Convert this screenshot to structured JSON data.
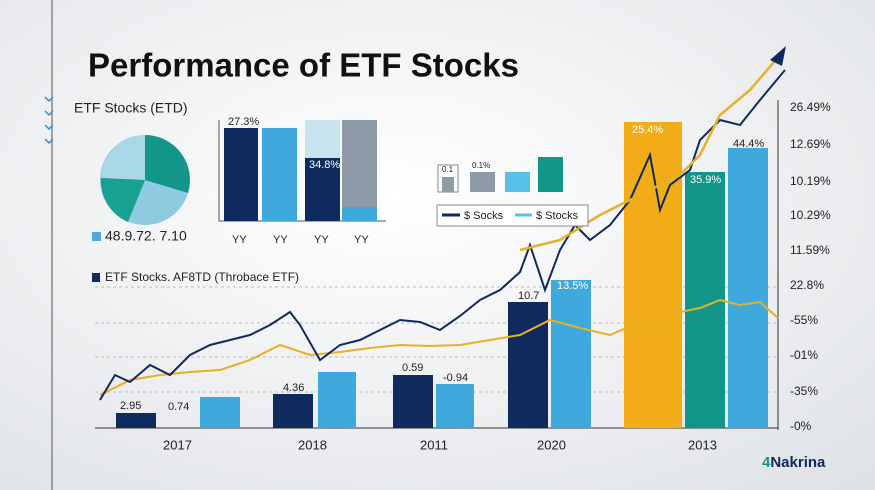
{
  "header": {
    "title": "Performance of ETF Stocks",
    "subtitle": "ETF Stocks (ETD)"
  },
  "pie": {
    "legend": "48.9.72. 7.10"
  },
  "small_bars": {
    "labels": [
      "27.3%",
      "34.8%"
    ],
    "categories": [
      "YY",
      "YY",
      "YY",
      "YY"
    ]
  },
  "mini_bars": {
    "labels": [
      "0.1",
      "0.1%"
    ]
  },
  "line_legend": [
    "$ Socks",
    "$ Stocks"
  ],
  "main_legend": "ETF Stocks. AF8TD (Throbace ETF)",
  "main_bars": {
    "labels": [
      "2.95",
      "0.74",
      "4.36",
      "0.59",
      "-0.94",
      "10.7",
      "13.5%",
      "25.4%",
      "35.9%",
      "44.4%"
    ],
    "categories": [
      "2017",
      "2018",
      "2011",
      "2020",
      "2013"
    ]
  },
  "right_axis": [
    "26.49%",
    "12.69%",
    "10.19%",
    "10.29%",
    "11.59%",
    "22.8%",
    "-55%",
    "-01%",
    "-35%",
    "-0%"
  ],
  "logo": "Nakrina"
}
